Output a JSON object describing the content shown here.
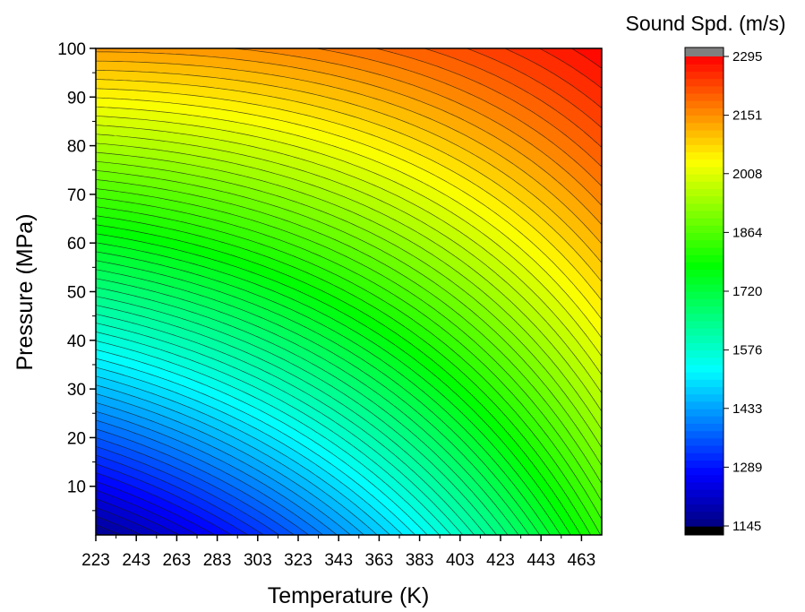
{
  "chart_data": {
    "type": "heatmap",
    "subtype": "filled-contour",
    "title": "",
    "xlabel": "Temperature (K)",
    "ylabel": "Pressure (MPa)",
    "xlim": [
      223,
      473
    ],
    "ylim": [
      0,
      100
    ],
    "x_ticks": [
      223,
      243,
      263,
      283,
      303,
      323,
      343,
      363,
      383,
      403,
      423,
      443,
      463
    ],
    "y_ticks": [
      10,
      20,
      30,
      40,
      50,
      60,
      70,
      80,
      90,
      100
    ],
    "colorbar": {
      "title": "Sound Spd. (m/s)",
      "ticks": [
        1145,
        1289,
        1433,
        1576,
        1720,
        1864,
        2008,
        2151,
        2295
      ],
      "range": [
        1145,
        2295
      ],
      "over_color": "#808080",
      "under_color": "#000000",
      "levels": 64
    },
    "corner_values": [
      {
        "x": 223,
        "y": 0,
        "value": 1160
      },
      {
        "x": 473,
        "y": 0,
        "value": 1830
      },
      {
        "x": 223,
        "y": 100,
        "value": 2140
      },
      {
        "x": 473,
        "y": 100,
        "value": 2295
      }
    ],
    "sample_values": [
      {
        "x": 223,
        "y": 50,
        "value": 1760
      },
      {
        "x": 348,
        "y": 50,
        "value": 1740
      },
      {
        "x": 473,
        "y": 50,
        "value": 2000
      },
      {
        "x": 348,
        "y": 0,
        "value": 1460
      },
      {
        "x": 348,
        "y": 100,
        "value": 2150
      }
    ],
    "grid": false,
    "colormap": [
      "#000080",
      "#0000ff",
      "#0080ff",
      "#00ffff",
      "#00ff80",
      "#00ff00",
      "#80ff00",
      "#ffff00",
      "#ff8000",
      "#ff0000"
    ]
  }
}
